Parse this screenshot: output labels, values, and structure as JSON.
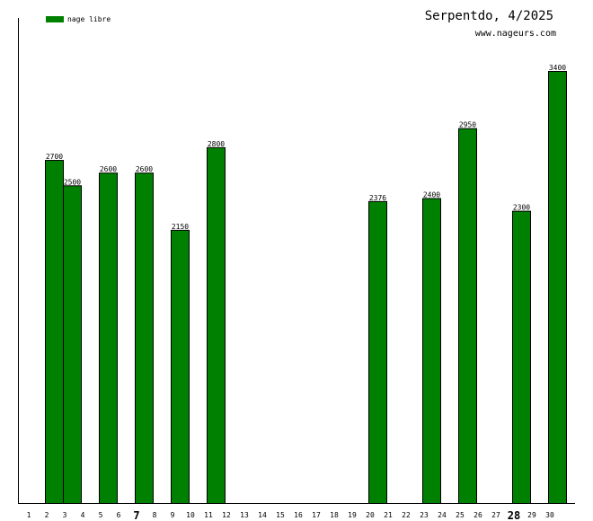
{
  "header": {
    "title": "Serpentdo, 4/2025",
    "site": "www.nageurs.com"
  },
  "colors": {
    "bar": "#008000",
    "axis": "#000000"
  },
  "chart_data": {
    "type": "bar",
    "title": "Serpentdo, 4/2025",
    "xlabel": "",
    "ylabel": "",
    "categories": [
      "1",
      "2",
      "3",
      "4",
      "5",
      "6",
      "7",
      "8",
      "9",
      "10",
      "11",
      "12",
      "13",
      "14",
      "15",
      "16",
      "17",
      "18",
      "19",
      "20",
      "21",
      "22",
      "23",
      "24",
      "25",
      "26",
      "27",
      "28",
      "29",
      "30"
    ],
    "bold_categories": [
      "7",
      "28"
    ],
    "series": [
      {
        "name": "nage libre",
        "values": [
          null,
          2700,
          2500,
          null,
          2600,
          null,
          2600,
          null,
          2150,
          null,
          2800,
          null,
          null,
          null,
          null,
          null,
          null,
          null,
          null,
          2376,
          null,
          null,
          2400,
          null,
          2950,
          null,
          null,
          2300,
          null,
          3400
        ]
      }
    ],
    "ylim": [
      0,
      3400
    ],
    "grid": false,
    "legend": "top-left"
  }
}
